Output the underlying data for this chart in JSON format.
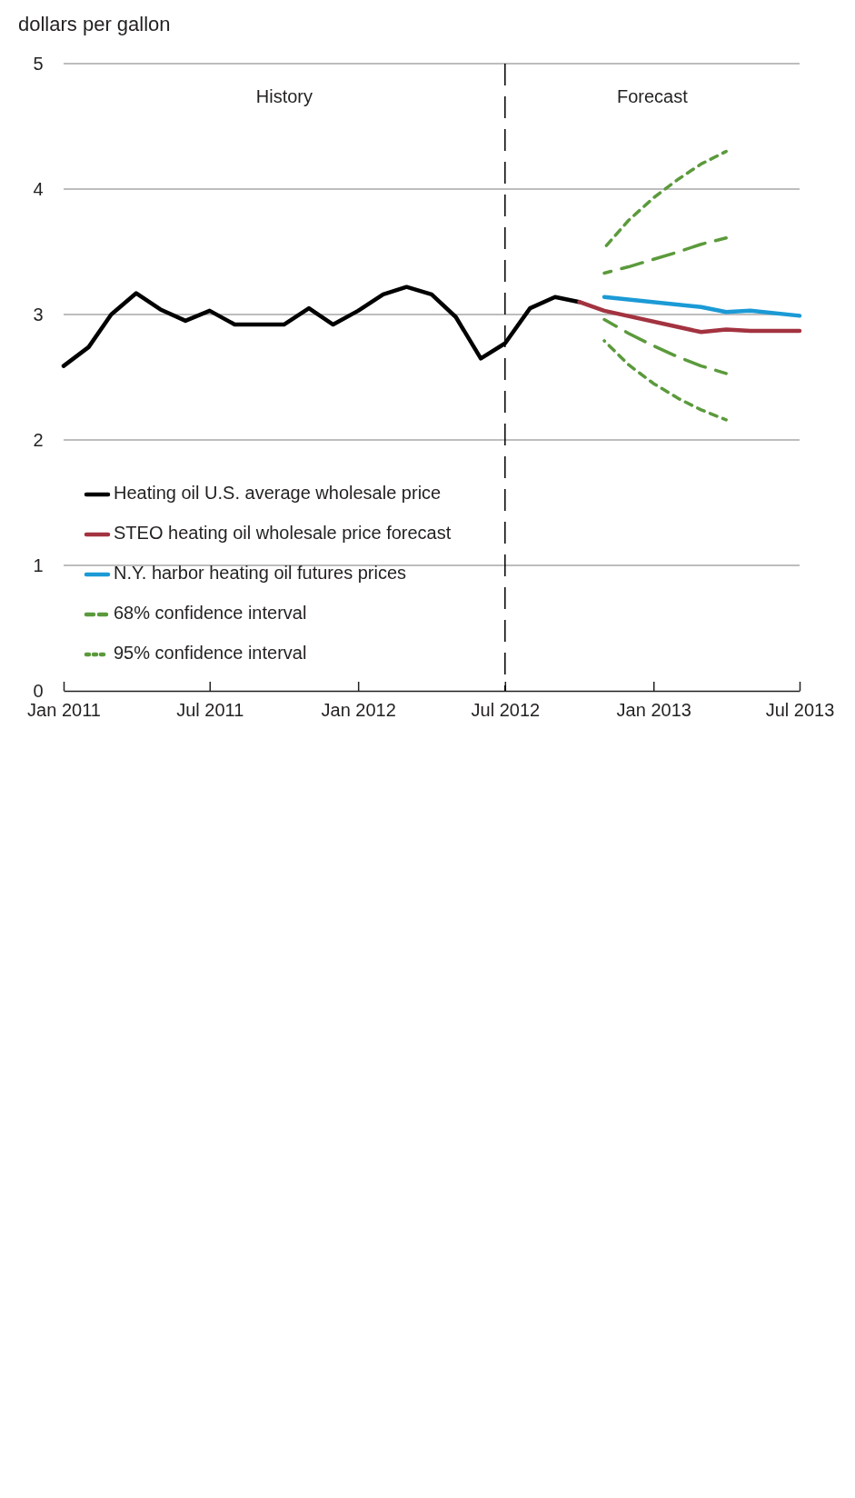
{
  "chart_data": {
    "type": "line",
    "ylabel": "dollars per gallon",
    "x": [
      "2011-01",
      "2011-02",
      "2011-03",
      "2011-04",
      "2011-05",
      "2011-06",
      "2011-07",
      "2011-08",
      "2011-09",
      "2011-10",
      "2011-11",
      "2011-12",
      "2012-01",
      "2012-02",
      "2012-03",
      "2012-04",
      "2012-05",
      "2012-06",
      "2012-07",
      "2012-08",
      "2012-09",
      "2012-10"
    ],
    "series": [
      {
        "name": "Heating oil U.S. average wholesale price",
        "color": "#000000",
        "line_style": "solid",
        "values": [
          2.59,
          2.74,
          3.0,
          3.17,
          3.04,
          2.95,
          3.03,
          2.92,
          2.92,
          2.92,
          3.05,
          2.92,
          3.03,
          3.16,
          3.22,
          3.16,
          2.98,
          2.65,
          2.77,
          3.05,
          3.14,
          3.1
        ]
      },
      {
        "name": "STEO heating oil wholesale price forecast",
        "color": "#a33340",
        "line_style": "solid",
        "x": [
          "2012-10",
          "2012-11",
          "2013-03",
          "2013-04",
          "2013-05",
          "2013-07"
        ],
        "values": [
          3.1,
          3.03,
          2.86,
          2.88,
          2.87,
          2.87
        ]
      },
      {
        "name": "N.Y. harbor heating oil futures prices",
        "color": "#1b9ad6",
        "line_style": "solid",
        "x": [
          "2012-11",
          "2013-03",
          "2013-04",
          "2013-05",
          "2013-07"
        ],
        "values": [
          3.14,
          3.06,
          3.02,
          3.03,
          2.99
        ]
      },
      {
        "name": "68% confidence interval",
        "color": "#5b9a3c",
        "line_style": "dashed",
        "x": [
          "2012-11",
          "2012-12",
          "2013-01",
          "2013-02",
          "2013-03",
          "2013-04"
        ],
        "values": [
          3.33,
          3.38,
          3.44,
          3.5,
          3.56,
          3.61
        ]
      },
      {
        "color": "#5b9a3c",
        "line_style": "dashed",
        "x": [
          "2012-11",
          "2012-12",
          "2013-01",
          "2013-02",
          "2013-03",
          "2013-04"
        ],
        "values": [
          2.96,
          2.85,
          2.75,
          2.66,
          2.59,
          2.53
        ]
      },
      {
        "name": "95% confidence interval",
        "color": "#5b9a3c",
        "line_style": "dotted",
        "x": [
          "2012-11",
          "2012-12",
          "2013-01",
          "2013-02",
          "2013-03",
          "2013-04"
        ],
        "values": [
          3.53,
          3.75,
          3.93,
          4.08,
          4.2,
          4.3
        ]
      },
      {
        "color": "#5b9a3c",
        "line_style": "dotted",
        "x": [
          "2012-11",
          "2012-12",
          "2013-01",
          "2013-02",
          "2013-03",
          "2013-04"
        ],
        "values": [
          2.79,
          2.6,
          2.45,
          2.33,
          2.24,
          2.16
        ]
      }
    ],
    "xlim": [
      "2011-01",
      "2013-07"
    ],
    "xticks": [
      {
        "value": "2011-01",
        "label": "Jan 2011"
      },
      {
        "value": "2011-07",
        "label": "Jul 2011"
      },
      {
        "value": "2012-01",
        "label": "Jan 2012"
      },
      {
        "value": "2012-07",
        "label": "Jul 2012"
      },
      {
        "value": "2013-01",
        "label": "Jan 2013"
      },
      {
        "value": "2013-07",
        "label": "Jul 2013"
      }
    ],
    "ylim": [
      0,
      5
    ],
    "yticks": [
      0,
      1,
      2,
      3,
      4,
      5
    ],
    "grid": "y",
    "legend": "bottom left",
    "marker": "none",
    "ref_lines": [
      {
        "axis": "x",
        "value": "2012-07",
        "color": "#000000",
        "line_style": "dashed"
      }
    ],
    "annotations": [
      "History",
      "Forecast"
    ]
  }
}
